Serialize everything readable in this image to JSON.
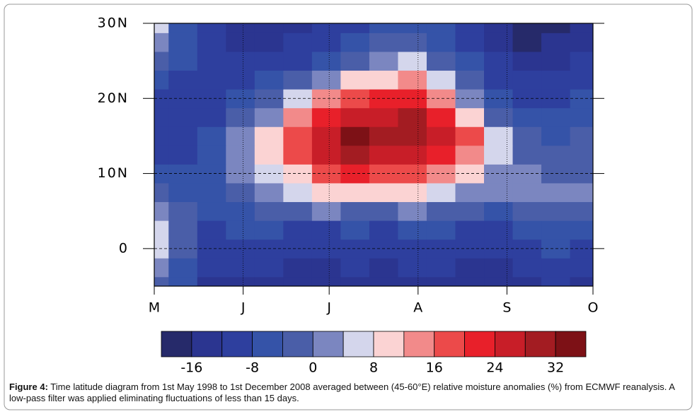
{
  "chart_data": {
    "type": "contour",
    "x": [
      0,
      10,
      20,
      30,
      40,
      50,
      60,
      70,
      80,
      90,
      100,
      110,
      120,
      130,
      140,
      150
    ],
    "y": [
      -5,
      -2.5,
      0,
      2.5,
      5,
      7.5,
      10,
      12.5,
      15,
      17.5,
      20,
      22.5,
      25,
      27.5,
      30
    ],
    "z": [
      [
        -2,
        -8,
        -14,
        -14,
        -14,
        -14,
        -16,
        -14,
        -14,
        -14,
        -14,
        -14,
        -16,
        -14,
        -12,
        -14
      ],
      [
        2,
        -6,
        -12,
        -12,
        -12,
        -14,
        -14,
        -12,
        -14,
        -12,
        -12,
        -14,
        -14,
        -12,
        -10,
        -12
      ],
      [
        6,
        -2,
        -10,
        -10,
        -10,
        -12,
        -12,
        -10,
        -12,
        -10,
        -10,
        -12,
        -12,
        -10,
        -8,
        -10
      ],
      [
        4,
        -4,
        -10,
        -8,
        -8,
        -10,
        -10,
        -8,
        -10,
        -8,
        -8,
        -10,
        -10,
        -8,
        -6,
        -8
      ],
      [
        0,
        -4,
        -8,
        -6,
        -4,
        -2,
        0,
        -2,
        -4,
        0,
        -2,
        -4,
        -6,
        -4,
        -2,
        -4
      ],
      [
        -4,
        -6,
        -6,
        -2,
        0,
        4,
        8,
        10,
        8,
        8,
        6,
        2,
        0,
        0,
        0,
        0
      ],
      [
        -6,
        -8,
        -6,
        0,
        4,
        10,
        16,
        20,
        18,
        18,
        14,
        8,
        2,
        0,
        -2,
        -2
      ],
      [
        -10,
        -10,
        -6,
        2,
        8,
        16,
        24,
        28,
        26,
        26,
        22,
        14,
        6,
        -2,
        -4,
        -4
      ],
      [
        -12,
        -12,
        -8,
        0,
        10,
        18,
        26,
        32,
        30,
        30,
        26,
        16,
        4,
        -4,
        -6,
        -4
      ],
      [
        -12,
        -12,
        -10,
        -4,
        2,
        12,
        22,
        26,
        26,
        28,
        22,
        10,
        -2,
        -8,
        -8,
        -6
      ],
      [
        -10,
        -12,
        -12,
        -8,
        -4,
        4,
        12,
        18,
        20,
        22,
        14,
        2,
        -6,
        -10,
        -10,
        -8
      ],
      [
        -8,
        -10,
        -12,
        -10,
        -8,
        -4,
        2,
        8,
        10,
        12,
        6,
        -4,
        -10,
        -12,
        -12,
        -10
      ],
      [
        -4,
        -8,
        -12,
        -12,
        -12,
        -10,
        -6,
        -2,
        2,
        4,
        -2,
        -8,
        -12,
        -14,
        -14,
        -12
      ],
      [
        0,
        -8,
        -12,
        -14,
        -14,
        -12,
        -10,
        -8,
        -4,
        -2,
        -6,
        -10,
        -14,
        -18,
        -16,
        -14
      ],
      [
        4,
        -8,
        -12,
        -14,
        -16,
        -14,
        -12,
        -10,
        -8,
        -6,
        -8,
        -10,
        -14,
        -18,
        -18,
        -16
      ]
    ],
    "xlim": [
      0,
      153
    ],
    "xticks": [
      {
        "value": 0,
        "label": "M"
      },
      {
        "value": 31,
        "label": "J"
      },
      {
        "value": 61,
        "label": "J"
      },
      {
        "value": 92,
        "label": "A"
      },
      {
        "value": 123,
        "label": "S"
      },
      {
        "value": 153,
        "label": "O"
      }
    ],
    "ylim": [
      -5,
      30
    ],
    "yticks": [
      0,
      {
        "value": 10,
        "label": "10N"
      },
      {
        "value": 20,
        "label": "20N"
      },
      {
        "value": 30,
        "label": "30N"
      }
    ],
    "grid": true,
    "colorbar": {
      "lim": [
        -20,
        36
      ],
      "ticks": [
        -16,
        -8,
        0,
        8,
        16,
        24,
        32
      ],
      "colors": [
        "#262a6a",
        "#2b3590",
        "#2e3f9e",
        "#3553a8",
        "#4a5ea8",
        "#7b86c0",
        "#d4d6ec",
        "#fbd3d3",
        "#f28a8a",
        "#ec4a4a",
        "#e8202a",
        "#c81e28",
        "#a31c22",
        "#7d1116"
      ]
    },
    "caption_label": "Figure 4:",
    "caption": "Time latitude diagram from 1st May 1998 to 1st December 2008 averaged between (45-60°E) relative moisture anomalies (%) from ECMWF reanalysis. A low-pass filter was applied eliminating fluctuations of less than 15 days."
  }
}
